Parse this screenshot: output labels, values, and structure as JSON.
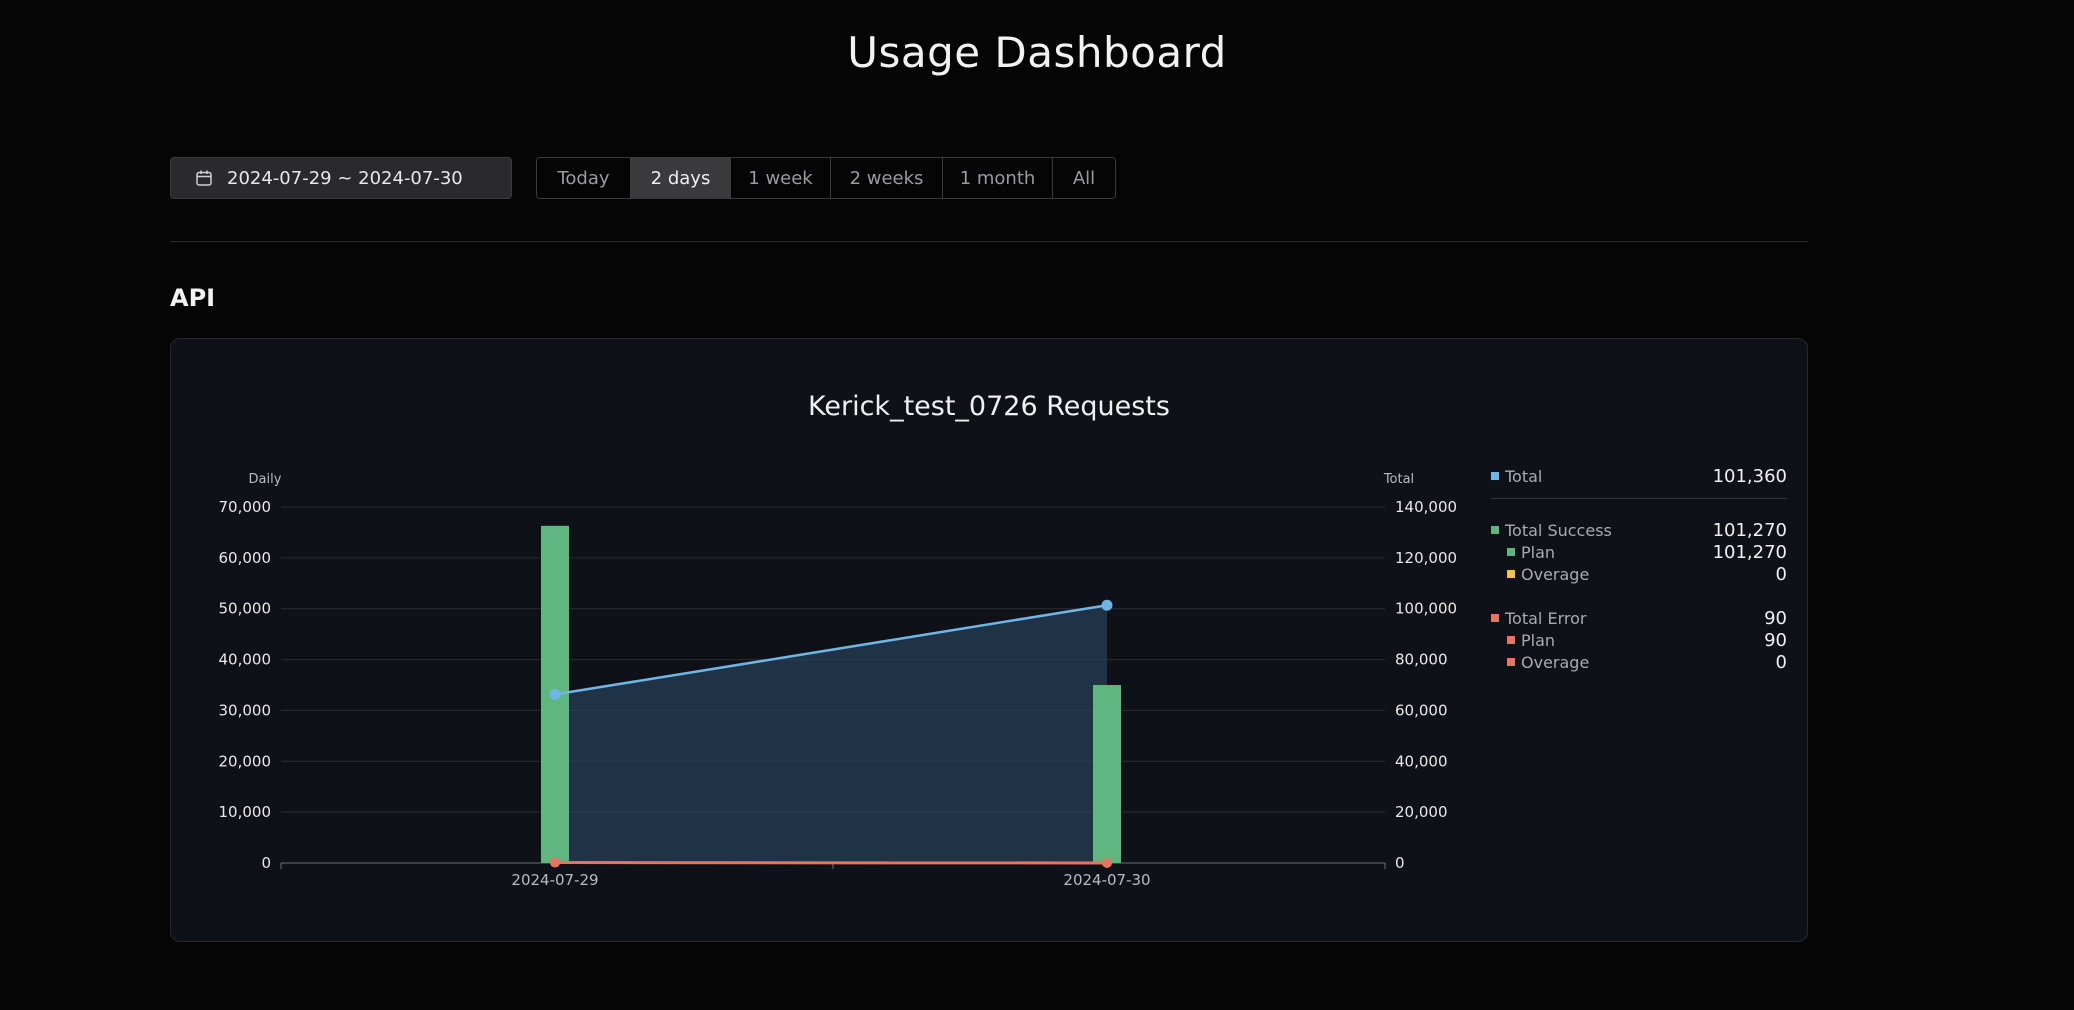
{
  "page": {
    "title": "Usage Dashboard"
  },
  "filters": {
    "date_range": "2024-07-29 ~ 2024-07-30",
    "ranges": [
      {
        "label": "Today",
        "active": false
      },
      {
        "label": "2 days",
        "active": true
      },
      {
        "label": "1 week",
        "active": false
      },
      {
        "label": "2 weeks",
        "active": false
      },
      {
        "label": "1 month",
        "active": false
      },
      {
        "label": "All",
        "active": false
      }
    ]
  },
  "section": {
    "title": "API"
  },
  "chart_data": {
    "type": "bar",
    "title": "Kerick_test_0726 Requests",
    "categories": [
      "2024-07-29",
      "2024-07-30"
    ],
    "y_left_label": "Daily",
    "y_right_label": "Total",
    "y_left_ticks": [
      "70,000",
      "60,000",
      "50,000",
      "40,000",
      "30,000",
      "20,000",
      "10,000",
      "0"
    ],
    "y_right_ticks": [
      "140,000",
      "120,000",
      "100,000",
      "80,000",
      "60,000",
      "40,000",
      "20,000",
      "0"
    ],
    "ylim_left": [
      0,
      70000
    ],
    "ylim_right": [
      0,
      140000
    ],
    "grid": true,
    "series": [
      {
        "name": "Total Success",
        "kind": "bar",
        "axis": "left",
        "values": [
          66300,
          35000
        ],
        "color": "#5fb67f"
      },
      {
        "name": "Total",
        "kind": "area-line",
        "axis": "right",
        "values": [
          66300,
          101360
        ],
        "color": "#6fb6e6"
      },
      {
        "name": "Total Error",
        "kind": "line",
        "axis": "left",
        "values": [
          90,
          0
        ],
        "color": "#e8735f"
      }
    ],
    "legend": {
      "total": {
        "label": "Total",
        "value": "101,360",
        "color": "#6fb6e6"
      },
      "success": {
        "label": "Total Success",
        "value": "101,270",
        "color": "#5fb67f",
        "plan": {
          "label": "Plan",
          "value": "101,270",
          "color": "#5fb67f"
        },
        "overage": {
          "label": "Overage",
          "value": "0",
          "color": "#f2c14e"
        }
      },
      "error": {
        "label": "Total Error",
        "value": "90",
        "color": "#e8735f",
        "plan": {
          "label": "Plan",
          "value": "90",
          "color": "#e8735f"
        },
        "overage": {
          "label": "Overage",
          "value": "0",
          "color": "#e8735f"
        }
      }
    }
  }
}
